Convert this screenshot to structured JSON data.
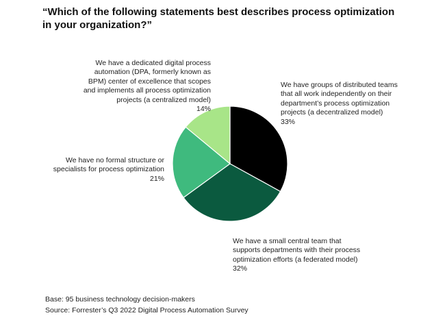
{
  "title": "“Which of the following statements best describes process optimization in your organization?”",
  "footer": {
    "base": "Base: 95 business technology decision-makers",
    "source": "Source: Forrester’s Q3 2022 Digital Process Automation Survey"
  },
  "chart_data": {
    "type": "pie",
    "title": "“Which of the following statements best describes process optimization in your organization?”",
    "start_angle_deg": 0,
    "direction": "clockwise",
    "slices": [
      {
        "key": "groups",
        "label": "We have groups of distributed teams that all work independently on their department’s process optimization projects (a decentralized model)",
        "value": 33,
        "value_label": "33%",
        "color": "#000000"
      },
      {
        "key": "small",
        "label": "We have a small central team that supports departments with their process optimization efforts (a federated model)",
        "value": 32,
        "value_label": "32%",
        "color": "#0b5a3f"
      },
      {
        "key": "none",
        "label": "We have no formal structure or specialists for process optimization",
        "value": 21,
        "value_label": "21%",
        "color": "#3fba7e"
      },
      {
        "key": "dpa",
        "label": "We have a dedicated digital process automation (DPA, formerly known as BPM) center of excellence that scopes and implements all process optimization projects (a centralized model)",
        "value": 14,
        "value_label": "14%",
        "color": "#a8e588"
      }
    ]
  }
}
